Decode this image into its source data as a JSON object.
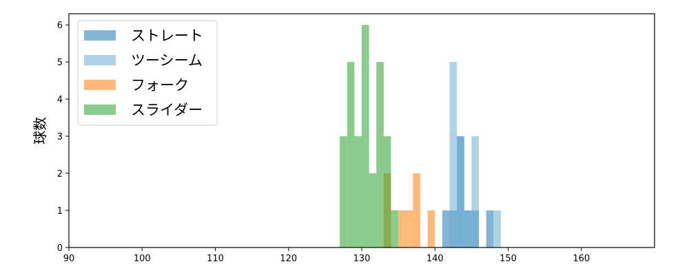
{
  "chart_data": {
    "type": "bar",
    "xlabel": "",
    "ylabel": "球数",
    "xlim": [
      90,
      170
    ],
    "ylim": [
      0,
      6.3
    ],
    "xticks": [
      90,
      100,
      110,
      120,
      130,
      140,
      150,
      160
    ],
    "yticks": [
      0,
      1,
      2,
      3,
      4,
      5,
      6
    ],
    "bin_width": 1,
    "legend_placement": "top-left",
    "series": [
      {
        "name": "ストレート",
        "color": "#1f77b4",
        "bins": [
          {
            "start": 141,
            "count": 1
          },
          {
            "start": 142,
            "count": 1
          },
          {
            "start": 143,
            "count": 3
          },
          {
            "start": 144,
            "count": 1
          },
          {
            "start": 145,
            "count": 1
          },
          {
            "start": 147,
            "count": 1
          }
        ]
      },
      {
        "name": "ツーシーム",
        "color": "#6baed6",
        "bins": [
          {
            "start": 142,
            "count": 5
          },
          {
            "start": 143,
            "count": 3
          },
          {
            "start": 144,
            "count": 1
          },
          {
            "start": 145,
            "count": 3
          },
          {
            "start": 148,
            "count": 1
          }
        ]
      },
      {
        "name": "フォーク",
        "color": "#ff7f0e",
        "bins": [
          {
            "start": 133,
            "count": 2
          },
          {
            "start": 135,
            "count": 1
          },
          {
            "start": 136,
            "count": 1
          },
          {
            "start": 137,
            "count": 2
          },
          {
            "start": 139,
            "count": 1
          }
        ]
      },
      {
        "name": "スライダー",
        "color": "#2ca02c",
        "bins": [
          {
            "start": 127,
            "count": 3
          },
          {
            "start": 128,
            "count": 5
          },
          {
            "start": 129,
            "count": 3
          },
          {
            "start": 130,
            "count": 6
          },
          {
            "start": 131,
            "count": 2
          },
          {
            "start": 132,
            "count": 5
          },
          {
            "start": 133,
            "count": 3
          },
          {
            "start": 134,
            "count": 1
          }
        ]
      }
    ]
  }
}
